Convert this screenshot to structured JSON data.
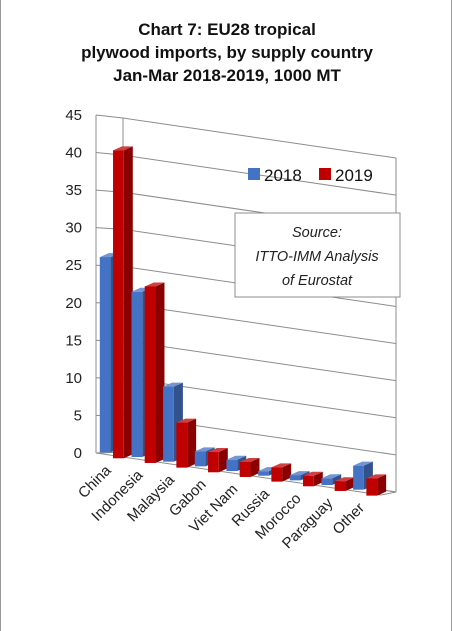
{
  "chart_data": {
    "type": "bar",
    "title_lines": [
      "Chart 7: EU28 tropical",
      "plywood imports, by supply country",
      "Jan-Mar 2018-2019, 1000 MT"
    ],
    "categories": [
      "China",
      "Indonesia",
      "Malaysia",
      "Gabon",
      "Viet Nam",
      "Russia",
      "Morocco",
      "Paraguay",
      "Other"
    ],
    "series": [
      {
        "name": "2018",
        "color": "#4472c4",
        "values": [
          26,
          22,
          10,
          2,
          1.5,
          0.6,
          0.7,
          0.9,
          3.2
        ]
      },
      {
        "name": "2019",
        "color": "#c00000",
        "values": [
          41,
          23.5,
          6,
          2.7,
          2,
          1.9,
          1.4,
          1.3,
          2.3
        ]
      }
    ],
    "ylim": [
      0,
      45
    ],
    "yticks": [
      0,
      5,
      10,
      15,
      20,
      25,
      30,
      35,
      40,
      45
    ],
    "grid": true,
    "legend_position": "top-right",
    "annotation_lines": [
      "Source:",
      "ITTO-IMM Analysis",
      "of Eurostat"
    ]
  }
}
